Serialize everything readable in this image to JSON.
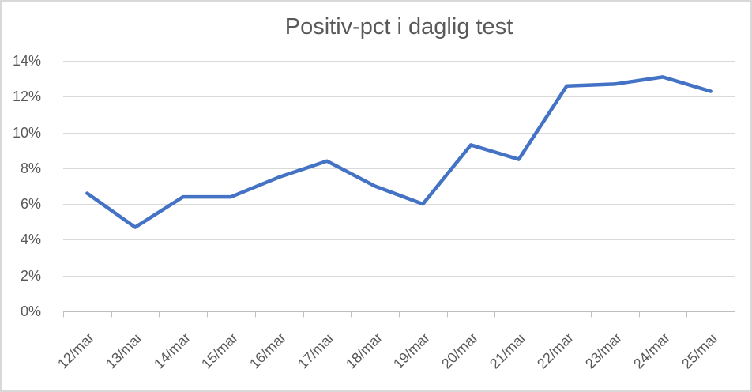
{
  "chart_data": {
    "type": "line",
    "title": "Positiv-pct i daglig test",
    "categories": [
      "12/mar",
      "13/mar",
      "14/mar",
      "15/mar",
      "16/mar",
      "17/mar",
      "18/mar",
      "19/mar",
      "20/mar",
      "21/mar",
      "22/mar",
      "23/mar",
      "24/mar",
      "25/mar"
    ],
    "values": [
      6.6,
      4.7,
      6.4,
      6.4,
      7.5,
      8.4,
      7.0,
      6.0,
      9.3,
      8.5,
      12.6,
      12.7,
      13.1,
      12.3
    ],
    "xlabel": "",
    "ylabel": "",
    "ylim": [
      0,
      14
    ],
    "y_tick_step": 2,
    "y_tick_labels": [
      "0%",
      "2%",
      "4%",
      "6%",
      "8%",
      "10%",
      "12%",
      "14%"
    ],
    "x_label_rotation_deg": -45,
    "grid": true,
    "legend": "none",
    "colors": {
      "line": "#4472C4",
      "gridline": "#D9D9D9",
      "axis": "#BFBFBF",
      "text": "#595959",
      "title": "#595959",
      "background": "#FFFFFF",
      "border": "#D9D9D9"
    }
  }
}
